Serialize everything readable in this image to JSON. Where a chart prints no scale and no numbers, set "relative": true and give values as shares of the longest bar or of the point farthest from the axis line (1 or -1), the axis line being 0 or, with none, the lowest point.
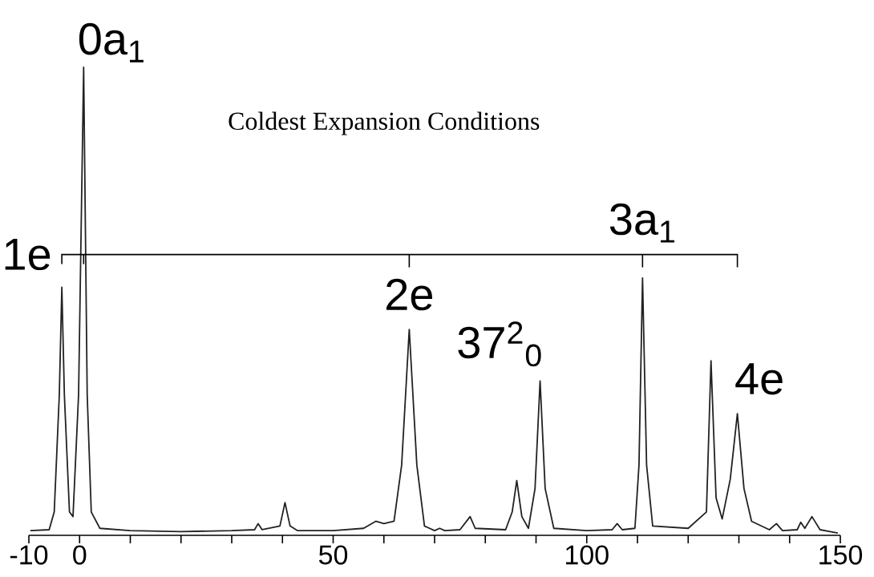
{
  "chart_data": {
    "type": "line",
    "title": "Coldest Expansion Conditions",
    "relative": true,
    "color": "#222222",
    "xlim": [
      -10,
      150
    ],
    "xticks": [
      -10,
      0,
      {
        "value": 10,
        "label": null
      },
      {
        "value": 20,
        "label": null
      },
      {
        "value": 30,
        "label": null
      },
      {
        "value": 40,
        "label": null
      },
      50,
      {
        "value": 60,
        "label": null
      },
      {
        "value": 70,
        "label": null
      },
      {
        "value": 80,
        "label": null
      },
      {
        "value": 90,
        "label": null
      },
      100,
      {
        "value": 110,
        "label": null
      },
      {
        "value": 120,
        "label": null
      },
      {
        "value": 130,
        "label": null
      },
      {
        "value": 140,
        "label": null
      },
      150
    ],
    "x": [
      -9.7,
      -6,
      -5,
      -4,
      -3.5,
      -3,
      -2,
      -1.3,
      -0.2,
      0.8,
      1.5,
      2.3,
      4,
      10,
      20,
      30,
      34.5,
      35.2,
      36,
      39.5,
      40.5,
      41.5,
      43,
      50,
      56,
      58.4,
      60,
      62,
      63.5,
      65,
      66.5,
      68,
      69,
      70,
      71,
      72,
      75,
      77,
      78,
      84,
      85.3,
      86.2,
      87.2,
      88.5,
      89.8,
      90.8,
      91.8,
      93.5,
      100,
      105,
      106,
      107,
      109.5,
      110.3,
      111,
      111.8,
      113,
      120,
      123.6,
      124.5,
      125.5,
      126.7,
      128.3,
      129.7,
      131,
      132.5,
      136,
      137.4,
      138.6,
      141.5,
      142.2,
      143,
      144.4,
      146,
      148,
      149.5
    ],
    "values": [
      0.01,
      0.012,
      0.05,
      0.3,
      0.53,
      0.3,
      0.05,
      0.04,
      0.3,
      1.0,
      0.3,
      0.05,
      0.015,
      0.01,
      0.008,
      0.01,
      0.012,
      0.025,
      0.012,
      0.02,
      0.07,
      0.02,
      0.01,
      0.01,
      0.015,
      0.03,
      0.025,
      0.03,
      0.15,
      0.44,
      0.15,
      0.02,
      0.015,
      0.01,
      0.015,
      0.01,
      0.012,
      0.04,
      0.015,
      0.012,
      0.05,
      0.117,
      0.04,
      0.015,
      0.1,
      0.33,
      0.1,
      0.015,
      0.01,
      0.012,
      0.025,
      0.012,
      0.015,
      0.15,
      0.55,
      0.15,
      0.02,
      0.015,
      0.05,
      0.373,
      0.08,
      0.035,
      0.12,
      0.26,
      0.1,
      0.03,
      0.012,
      0.025,
      0.01,
      0.012,
      0.028,
      0.015,
      0.04,
      0.012,
      0.008,
      0.005
    ],
    "annotations": [
      {
        "text": "1e",
        "x": -3.5,
        "y": 0.53
      },
      {
        "text": "0a$_{1}$",
        "x": 0.8,
        "y": 1.0
      },
      {
        "text": "2e",
        "x": 65,
        "y": 0.44
      },
      {
        "text": "37$^{2}$$_{0}$",
        "x": 90.8,
        "y": 0.33
      },
      {
        "text": "3a$_{1}$",
        "x": 111,
        "y": 0.55
      },
      {
        "text": "4e",
        "x": 129.7,
        "y": 0.26
      }
    ]
  }
}
